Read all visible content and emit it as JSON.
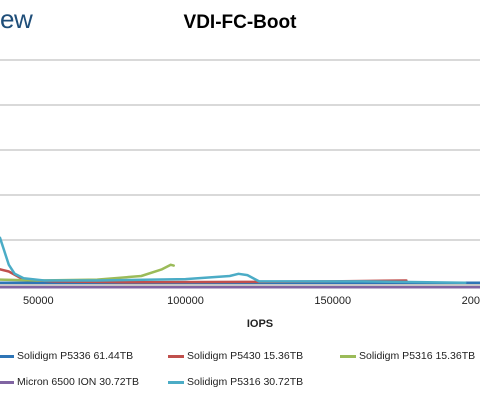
{
  "brand": {
    "text": "ew"
  },
  "chart_data": {
    "type": "line",
    "title": "VDI-FC-Boot",
    "xlabel": "IOPS",
    "ylabel": "",
    "x_ticks": [
      50000,
      100000,
      150000,
      200000
    ],
    "x_tick_labels": [
      "50000",
      "100000",
      "150000",
      "200000"
    ],
    "xlim": [
      37000,
      200000
    ],
    "ylim": [
      0,
      5
    ],
    "grid": true,
    "legend_position": "bottom",
    "series": [
      {
        "name": "Solidigm P5336 61.44TB",
        "color": "#2e75b6",
        "points": [
          [
            37000,
            0.05
          ],
          [
            60000,
            0.05
          ],
          [
            100000,
            0.05
          ],
          [
            200000,
            0.05
          ]
        ]
      },
      {
        "name": "Solidigm P5430 15.36TB",
        "color": "#c0504d",
        "points": [
          [
            37000,
            0.35
          ],
          [
            40000,
            0.3
          ],
          [
            45000,
            0.12
          ],
          [
            55000,
            0.08
          ],
          [
            80000,
            0.06
          ],
          [
            120000,
            0.07
          ],
          [
            150000,
            0.08
          ],
          [
            175000,
            0.1
          ]
        ]
      },
      {
        "name": "Solidigm P5316 15.36TB",
        "color": "#9bbb59",
        "points": [
          [
            37000,
            0.12
          ],
          [
            50000,
            0.1
          ],
          [
            70000,
            0.12
          ],
          [
            85000,
            0.2
          ],
          [
            92000,
            0.35
          ],
          [
            95000,
            0.45
          ],
          [
            96000,
            0.43
          ]
        ]
      },
      {
        "name": "Micron 6500 ION 30.72TB",
        "color": "#8064a2",
        "points": [
          [
            37000,
            -0.05
          ],
          [
            80000,
            -0.05
          ],
          [
            150000,
            -0.05
          ],
          [
            200000,
            -0.05
          ]
        ]
      },
      {
        "name": "Solidigm P5316 30.72TB",
        "color": "#4bacc6",
        "points": [
          [
            37000,
            1.05
          ],
          [
            38500,
            0.75
          ],
          [
            40000,
            0.45
          ],
          [
            42000,
            0.25
          ],
          [
            45000,
            0.15
          ],
          [
            52000,
            0.1
          ],
          [
            70000,
            0.1
          ],
          [
            100000,
            0.13
          ],
          [
            115000,
            0.2
          ],
          [
            118000,
            0.25
          ],
          [
            121000,
            0.22
          ],
          [
            125000,
            0.08
          ],
          [
            160000,
            0.08
          ],
          [
            195000,
            0.05
          ]
        ]
      }
    ]
  }
}
